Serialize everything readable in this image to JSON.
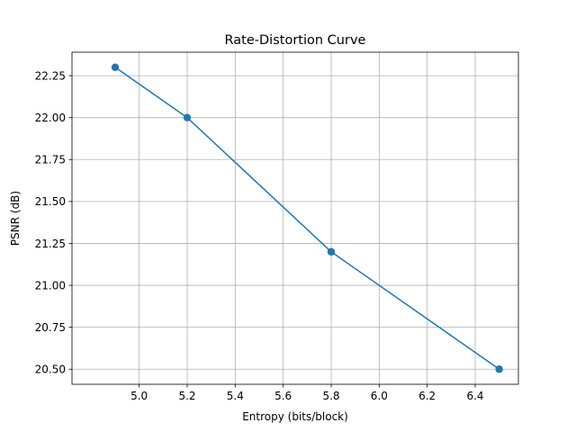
{
  "chart_data": {
    "type": "line",
    "title": "Rate-Distortion Curve",
    "xlabel": "Entropy (bits/block)",
    "ylabel": "PSNR (dB)",
    "x": [
      4.9,
      5.2,
      5.8,
      6.5
    ],
    "series": [
      {
        "values": [
          22.3,
          22.0,
          21.2,
          20.5
        ],
        "color": "#1f77b4",
        "marker": "circle"
      }
    ],
    "xlim": [
      4.72,
      6.58
    ],
    "ylim": [
      20.41,
      22.39
    ],
    "xticks": [
      5.0,
      5.2,
      5.4,
      5.6,
      5.8,
      6.0,
      6.2,
      6.4
    ],
    "xtick_labels": [
      "5.0",
      "5.2",
      "5.4",
      "5.6",
      "5.8",
      "6.0",
      "6.2",
      "6.4"
    ],
    "yticks": [
      20.5,
      20.75,
      21.0,
      21.25,
      21.5,
      21.75,
      22.0,
      22.25
    ],
    "ytick_labels": [
      "20.50",
      "20.75",
      "21.00",
      "21.25",
      "21.50",
      "21.75",
      "22.00",
      "22.25"
    ],
    "grid": true,
    "grid_color": "#b0b0b0"
  }
}
